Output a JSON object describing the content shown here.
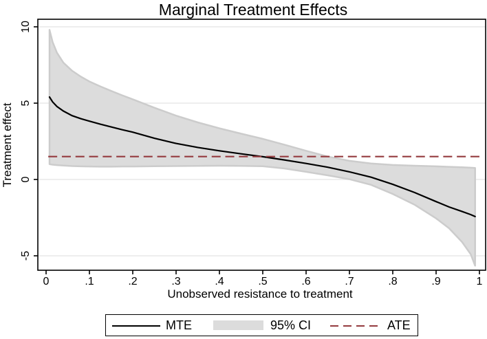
{
  "figure": {
    "title": "Marginal Treatment Effects",
    "x_axis": {
      "title": "Unobserved resistance to treatment",
      "ticks": [
        {
          "v": 0,
          "label": "0"
        },
        {
          "v": 0.1,
          "label": ".1"
        },
        {
          "v": 0.2,
          "label": ".2"
        },
        {
          "v": 0.3,
          "label": ".3"
        },
        {
          "v": 0.4,
          "label": ".4"
        },
        {
          "v": 0.5,
          "label": ".5"
        },
        {
          "v": 0.6,
          "label": ".6"
        },
        {
          "v": 0.7,
          "label": ".7"
        },
        {
          "v": 0.8,
          "label": ".8"
        },
        {
          "v": 0.9,
          "label": ".9"
        },
        {
          "v": 1,
          "label": "1"
        }
      ]
    },
    "y_axis": {
      "title": "Treatment effect",
      "ticks": [
        {
          "v": -5,
          "label": "-5"
        },
        {
          "v": 0,
          "label": "0"
        },
        {
          "v": 5,
          "label": "5"
        },
        {
          "v": 10,
          "label": "10"
        }
      ]
    },
    "legend": {
      "items": [
        {
          "label": "MTE",
          "type": "line"
        },
        {
          "label": "95% CI",
          "type": "band"
        },
        {
          "label": "ATE",
          "type": "dash"
        }
      ]
    }
  },
  "colors": {
    "mte": "#000000",
    "ci_fill": "#dcdcdc",
    "ci_edge": "#cccccc",
    "ate": "#943a3e",
    "grid": "#e8e8e8",
    "axis": "#000000",
    "background": "#ffffff"
  },
  "chart_data": {
    "type": "line",
    "title": "Marginal Treatment Effects",
    "xlabel": "Unobserved resistance to treatment",
    "ylabel": "Treatment effect",
    "xlim": [
      0,
      1
    ],
    "ylim": [
      -5,
      10
    ],
    "x_ticks": [
      0,
      0.1,
      0.2,
      0.3,
      0.4,
      0.5,
      0.6,
      0.7,
      0.8,
      0.9,
      1
    ],
    "y_ticks": [
      -5,
      0,
      5,
      10
    ],
    "grid": "horizontal-only",
    "legend_position": "bottom-boxed",
    "x": [
      0.008,
      0.015,
      0.025,
      0.04,
      0.06,
      0.08,
      0.1,
      0.125,
      0.15,
      0.175,
      0.2,
      0.25,
      0.3,
      0.35,
      0.4,
      0.45,
      0.5,
      0.55,
      0.6,
      0.65,
      0.7,
      0.75,
      0.8,
      0.85,
      0.9,
      0.93,
      0.96,
      0.98,
      0.99
    ],
    "series": [
      {
        "name": "MTE",
        "style": "solid",
        "y": [
          5.4,
          5.08,
          4.78,
          4.48,
          4.18,
          3.98,
          3.82,
          3.62,
          3.44,
          3.26,
          3.1,
          2.7,
          2.36,
          2.1,
          1.88,
          1.68,
          1.49,
          1.28,
          1.05,
          0.8,
          0.5,
          0.15,
          -0.32,
          -0.85,
          -1.45,
          -1.8,
          -2.1,
          -2.3,
          -2.43
        ]
      }
    ],
    "band": {
      "name": "95% CI",
      "upper": [
        9.8,
        9.0,
        8.3,
        7.65,
        7.12,
        6.74,
        6.42,
        6.1,
        5.8,
        5.52,
        5.25,
        4.7,
        4.18,
        3.74,
        3.35,
        3.0,
        2.66,
        2.28,
        1.88,
        1.5,
        1.22,
        1.05,
        0.95,
        0.9,
        0.86,
        0.83,
        0.8,
        0.77,
        0.75
      ],
      "lower": [
        1.0,
        0.97,
        0.94,
        0.91,
        0.88,
        0.86,
        0.85,
        0.84,
        0.84,
        0.85,
        0.85,
        0.87,
        0.88,
        0.89,
        0.9,
        0.89,
        0.87,
        0.72,
        0.5,
        0.27,
        0.02,
        -0.35,
        -0.95,
        -1.65,
        -2.55,
        -3.2,
        -4.1,
        -4.9,
        -5.65
      ]
    },
    "reference_line": {
      "name": "ATE",
      "value": 1.5,
      "style": "dashed",
      "x_start": 0.005,
      "x_end": 1.004
    }
  }
}
